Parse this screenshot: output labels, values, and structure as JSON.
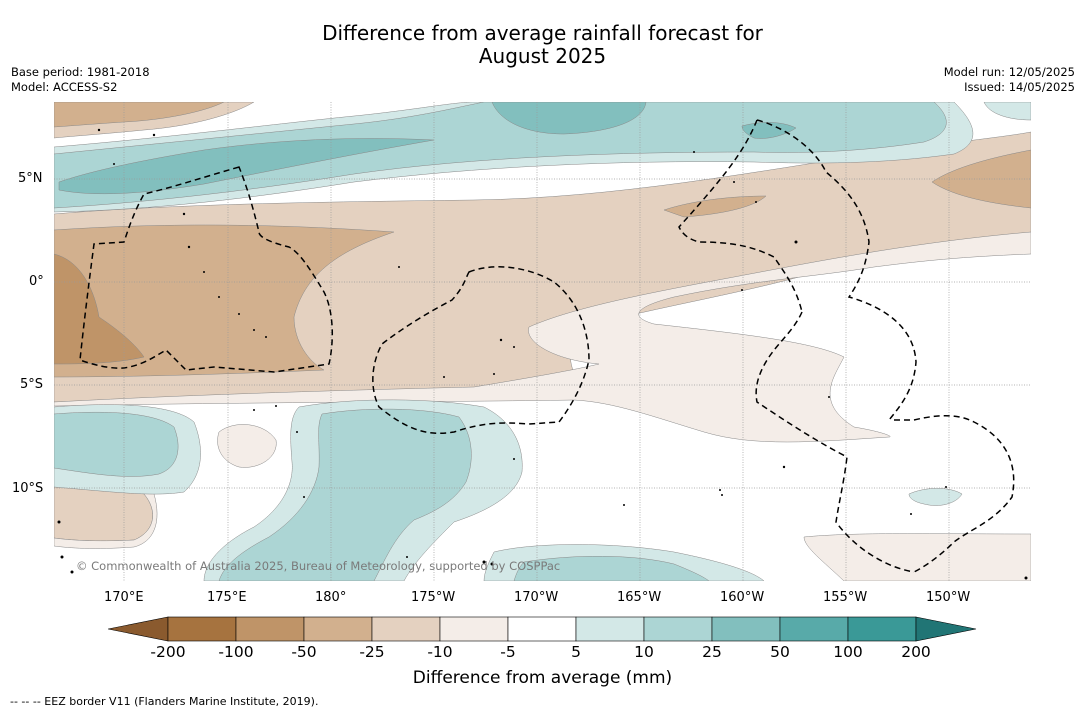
{
  "title": {
    "line1": "Difference from average rainfall forecast for",
    "line2": "August 2025"
  },
  "meta": {
    "base_period": "Base period: 1981-2018",
    "model": "Model: ACCESS-S2",
    "model_run": "Model run: 12/05/2025",
    "issued": "Issued: 14/05/2025"
  },
  "map": {
    "copyright": "© Commonwealth of Australia 2025, Bureau of Meteorology, supported by COSPPac",
    "lat_ticks": [
      "5°N",
      "0°",
      "5°S",
      "10°S"
    ],
    "lon_ticks": [
      "170°E",
      "175°E",
      "180°",
      "175°W",
      "170°W",
      "165°W",
      "160°W",
      "155°W",
      "150°W"
    ],
    "grid": true,
    "eez_line_color": "#000000"
  },
  "colorbar": {
    "title": "Difference from average (mm)",
    "labels": [
      "-200",
      "-100",
      "-50",
      "-25",
      "-10",
      "-5",
      "5",
      "10",
      "25",
      "50",
      "100",
      "200"
    ],
    "colors": [
      "#8a5a2e",
      "#a6733f",
      "#bf9468",
      "#d2b08e",
      "#e4d1c0",
      "#f4ede8",
      "#ffffff",
      "#d3e8e7",
      "#acd5d4",
      "#82bfbe",
      "#58aaa9",
      "#3a9997",
      "#217575"
    ],
    "extend": "both"
  },
  "footer": "-- -- -- EEZ border V11 (Flanders Marine Institute, 2019)."
}
